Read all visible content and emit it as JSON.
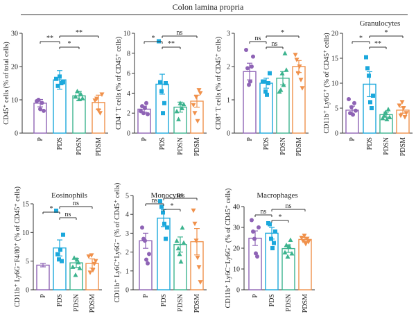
{
  "figure": {
    "title": "Colon lamina propria"
  },
  "colors": {
    "P": "#8e63b5",
    "PDS": "#1ba8dc",
    "PDSN": "#3cb38e",
    "PDSM": "#f0914b",
    "axis": "#333333",
    "bar_line": "#555555"
  },
  "chart_data": [
    {
      "type": "bar",
      "title": "",
      "ylabel": "CD45⁺ cells (% of total cells)",
      "categories": [
        "P",
        "PDS",
        "PDSN",
        "PDSM"
      ],
      "values": [
        9.0,
        16.0,
        11.2,
        9.2
      ],
      "errors": [
        1.1,
        2.8,
        1.4,
        2.2
      ],
      "points": [
        [
          9.6,
          10.0,
          7.2,
          9.1,
          6.7
        ],
        [
          16.3,
          14.2,
          17.0,
          15.0,
          15.3
        ],
        [
          11.0,
          12.6,
          10.2,
          11.8,
          10.5
        ],
        [
          9.8,
          10.3,
          6.8,
          6.0,
          11.6
        ]
      ],
      "ylim": [
        0,
        30
      ],
      "yticks": [
        0,
        10,
        20,
        30
      ],
      "significance": [
        {
          "from": 0,
          "to": 1,
          "label": "**"
        },
        {
          "from": 1,
          "to": 2,
          "label": "*"
        },
        {
          "from": 1,
          "to": 3,
          "label": "**"
        }
      ]
    },
    {
      "type": "bar",
      "title": "",
      "ylabel": "CD4⁺ T cells (% of CD45⁺ cells)",
      "categories": [
        "P",
        "PDS",
        "PDSN",
        "PDSM"
      ],
      "values": [
        2.4,
        4.9,
        2.6,
        3.2
      ],
      "errors": [
        0.3,
        1.0,
        0.5,
        0.6
      ],
      "points": [
        [
          2.2,
          2.7,
          2.0,
          2.5,
          3.0,
          1.9
        ],
        [
          9.2,
          5.1,
          4.2,
          2.0,
          3.0,
          5.0
        ],
        [
          2.2,
          1.4,
          3.0,
          2.5,
          2.9
        ],
        [
          2.8,
          2.0,
          3.6,
          1.2,
          4.3,
          4.0
        ]
      ],
      "ylim": [
        0,
        10
      ],
      "yticks": [
        0,
        2,
        4,
        6,
        8,
        10
      ],
      "significance": [
        {
          "from": 0,
          "to": 1,
          "label": "*"
        },
        {
          "from": 1,
          "to": 2,
          "label": "**"
        },
        {
          "from": 1,
          "to": 3,
          "label": "ns"
        }
      ]
    },
    {
      "type": "bar",
      "title": "",
      "ylabel": "CD8⁺ T cells (% of CD45⁺ cells)",
      "categories": [
        "P",
        "PDS",
        "PDSN",
        "PDSM"
      ],
      "values": [
        1.85,
        1.5,
        1.65,
        2.0
      ],
      "errors": [
        0.25,
        0.15,
        0.2,
        0.18
      ],
      "points": [
        [
          2.5,
          1.95,
          1.45,
          1.55,
          2.0,
          2.3
        ],
        [
          1.55,
          1.55,
          1.25,
          1.15,
          1.5,
          1.8
        ],
        [
          1.25,
          1.3,
          1.8,
          1.45,
          2.4,
          1.9
        ],
        [
          2.35,
          2.2,
          1.8,
          2.0,
          1.6,
          1.35
        ]
      ],
      "ylim": [
        0,
        3
      ],
      "yticks": [
        0,
        1,
        2,
        3
      ],
      "significance": [
        {
          "from": 0,
          "to": 1,
          "label": "ns"
        },
        {
          "from": 1,
          "to": 2,
          "label": "ns"
        },
        {
          "from": 1,
          "to": 3,
          "label": "*"
        }
      ]
    },
    {
      "type": "bar",
      "title": "Granulocytes",
      "ylabel": "CD11b⁺ Ly6G⁺ (% of CD45⁺ cells)",
      "categories": [
        "P",
        "PDS",
        "PDSN",
        "PDSM"
      ],
      "values": [
        4.6,
        9.8,
        3.7,
        4.6
      ],
      "errors": [
        0.8,
        2.5,
        0.5,
        0.6
      ],
      "points": [
        [
          6.8,
          4.0,
          5.2,
          3.7,
          6.0,
          4.5
        ],
        [
          15.2,
          13.0,
          11.5,
          6.2,
          5.0,
          7.5
        ],
        [
          3.0,
          3.5,
          4.2,
          2.8,
          4.8,
          3.2
        ],
        [
          5.5,
          3.5,
          6.2,
          5.0,
          3.2,
          4.0
        ]
      ],
      "ylim": [
        0,
        20
      ],
      "yticks": [
        0,
        5,
        10,
        15,
        20
      ],
      "significance": [
        {
          "from": 0,
          "to": 1,
          "label": "*"
        },
        {
          "from": 1,
          "to": 2,
          "label": "**"
        },
        {
          "from": 1,
          "to": 3,
          "label": "*"
        }
      ]
    },
    {
      "type": "bar",
      "title": "Eosinophils",
      "ylabel": "CD11b⁺ Ly6G⁻F4/80⁺ (% of CD45⁺ cells)",
      "categories": [
        "P",
        "PDS",
        "PDSN",
        "PDSM"
      ],
      "values": [
        4.3,
        7.3,
        4.7,
        4.6
      ],
      "errors": [
        0.3,
        1.4,
        0.8,
        0.8
      ],
      "points": [
        [],
        [
          13.8,
          6.2,
          5.3,
          7.0,
          5.0,
          9.6
        ],
        [
          4.0,
          5.6,
          2.6,
          5.3,
          4.8,
          3.8
        ],
        [
          5.8,
          3.0,
          6.0,
          3.4,
          4.5,
          5.0
        ]
      ],
      "ylim": [
        0,
        15
      ],
      "yticks": [
        0,
        5,
        10,
        15
      ],
      "significance": [
        {
          "from": 0,
          "to": 1,
          "label": "*"
        },
        {
          "from": 1,
          "to": 2,
          "label": "ns"
        },
        {
          "from": 1,
          "to": 3,
          "label": "ns"
        }
      ]
    },
    {
      "type": "bar",
      "title": "Monocytes",
      "ylabel": "CD11b⁺ Ly6C⁺Ly6G⁻ (% of CD45⁺ cells)",
      "categories": [
        "P",
        "PDS",
        "PDSN",
        "PDSM"
      ],
      "values": [
        2.6,
        3.8,
        2.4,
        2.55
      ],
      "errors": [
        0.4,
        0.45,
        0.4,
        0.7
      ],
      "points": [
        [
          3.3,
          2.7,
          2.6,
          1.6,
          1.4,
          1.9
        ],
        [
          4.7,
          4.4,
          4.1,
          3.5,
          2.7,
          3.3
        ],
        [
          2.6,
          2.2,
          1.9,
          1.5,
          3.3,
          2.5
        ],
        [
          4.2,
          3.5,
          2.6,
          1.7,
          1.2,
          0.4
        ]
      ],
      "ylim": [
        0,
        5
      ],
      "yticks": [
        0,
        1,
        2,
        3,
        4,
        5
      ],
      "significance": [
        {
          "from": 0,
          "to": 1,
          "label": "ns"
        },
        {
          "from": 1,
          "to": 2,
          "label": "*"
        },
        {
          "from": 1,
          "to": 3,
          "label": "ns"
        }
      ]
    },
    {
      "type": "bar",
      "title": "Macrophages",
      "ylabel": "CD11b⁺ Ly6C⁻Ly6G⁻ (% of CD45⁺ cells)",
      "categories": [
        "P",
        "PDS",
        "PDSN",
        "PDSM"
      ],
      "values": [
        24.8,
        27.2,
        19.8,
        24.2
      ],
      "errors": [
        3.5,
        2.8,
        1.8,
        1.0
      ],
      "points": [
        [
          33.5,
          28.0,
          24.5,
          17.5,
          16.0,
          30.0
        ],
        [
          32.0,
          31.5,
          24.5,
          20.0,
          22.5,
          28.0
        ],
        [
          18.0,
          21.5,
          16.0,
          21.0,
          24.0,
          17.5
        ],
        [
          25.0,
          23.5,
          26.0,
          22.0,
          24.5,
          23.0
        ]
      ],
      "ylim": [
        0,
        40
      ],
      "yticks": [
        0,
        10,
        20,
        30,
        40
      ],
      "significance": [
        {
          "from": 0,
          "to": 1,
          "label": "ns"
        },
        {
          "from": 1,
          "to": 2,
          "label": "*"
        },
        {
          "from": 1,
          "to": 3,
          "label": "ns"
        }
      ]
    }
  ]
}
